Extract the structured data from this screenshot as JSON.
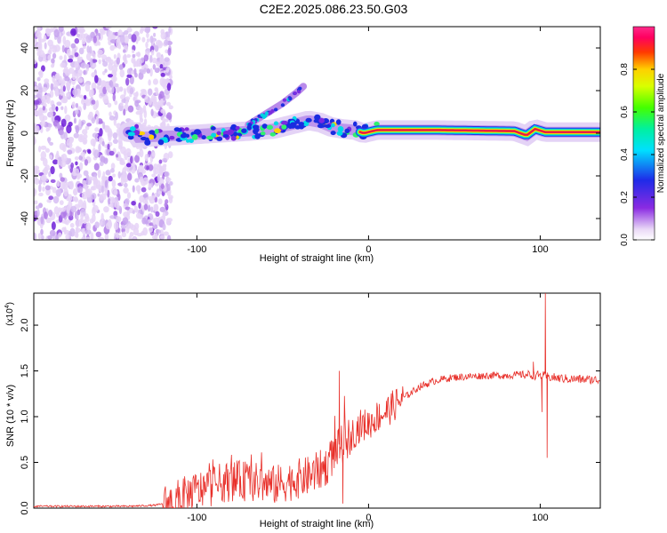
{
  "title": "C2E2.2025.086.23.50.G03",
  "chart_data": [
    {
      "type": "heatmap",
      "xlabel": "Height of straight line (km)",
      "ylabel": "Frequency (Hz)",
      "xlim": [
        -195,
        135
      ],
      "ylim": [
        -50,
        50
      ],
      "xticks": [
        -100,
        0,
        100
      ],
      "yticks": [
        -40,
        -20,
        0,
        20,
        40
      ],
      "colorbar": {
        "label": "Normalized spectral amplitude",
        "range": [
          0,
          1
        ],
        "ticks": [
          "0.0",
          "0.2",
          "0.4",
          "0.6",
          "0.8"
        ]
      },
      "ridge": [
        {
          "x": -135,
          "f": -2
        },
        {
          "x": -110,
          "f": -1
        },
        {
          "x": -90,
          "f": 0
        },
        {
          "x": -70,
          "f": 1
        },
        {
          "x": -55,
          "f": 2
        },
        {
          "x": -45,
          "f": 4
        },
        {
          "x": -35,
          "f": 6
        },
        {
          "x": -28,
          "f": 5
        },
        {
          "x": -22,
          "f": 3
        },
        {
          "x": -15,
          "f": 2
        },
        {
          "x": -8,
          "f": 1.5
        },
        {
          "x": -3,
          "f": 0
        },
        {
          "x": 5,
          "f": 1.5
        },
        {
          "x": 40,
          "f": 1.5
        },
        {
          "x": 85,
          "f": 1
        },
        {
          "x": 92,
          "f": -1
        },
        {
          "x": 97,
          "f": 2
        },
        {
          "x": 103,
          "f": 0.5
        },
        {
          "x": 135,
          "f": 0.5
        }
      ],
      "upper_branch": [
        {
          "x": -70,
          "f": 4
        },
        {
          "x": -60,
          "f": 9
        },
        {
          "x": -50,
          "f": 14
        },
        {
          "x": -42,
          "f": 19
        },
        {
          "x": -38,
          "f": 22
        }
      ]
    },
    {
      "type": "line",
      "xlabel": "Height of straight line (km)",
      "ylabel": "SNR (10 * v/v)",
      "scale_label": "(x10",
      "scale_exp": "4",
      "scale_close": ")",
      "xlim": [
        -195,
        135
      ],
      "ylim": [
        0,
        2.35
      ],
      "xticks": [
        -100,
        0,
        100
      ],
      "yticks": [
        "0.0",
        "0.5",
        "1.0",
        "1.5",
        "2.0"
      ],
      "series": [
        {
          "name": "SNR",
          "color": "#e8302a",
          "points": [
            [
              -195,
              0.02
            ],
            [
              -140,
              0.02
            ],
            [
              -125,
              0.03
            ],
            [
              -115,
              0.06
            ],
            [
              -105,
              0.15
            ],
            [
              -95,
              0.22
            ],
            [
              -85,
              0.28
            ],
            [
              -75,
              0.3
            ],
            [
              -65,
              0.28
            ],
            [
              -55,
              0.25
            ],
            [
              -45,
              0.3
            ],
            [
              -35,
              0.35
            ],
            [
              -25,
              0.45
            ],
            [
              -20,
              0.6
            ],
            [
              -15,
              0.7
            ],
            [
              -10,
              0.8
            ],
            [
              -5,
              0.9
            ],
            [
              0,
              0.92
            ],
            [
              5,
              1.0
            ],
            [
              10,
              1.05
            ],
            [
              20,
              1.2
            ],
            [
              30,
              1.33
            ],
            [
              40,
              1.4
            ],
            [
              50,
              1.43
            ],
            [
              60,
              1.44
            ],
            [
              70,
              1.45
            ],
            [
              80,
              1.45
            ],
            [
              90,
              1.46
            ],
            [
              100,
              1.45
            ],
            [
              110,
              1.42
            ],
            [
              120,
              1.41
            ],
            [
              135,
              1.4
            ]
          ],
          "spikes": [
            {
              "x": -17,
              "y": 1.5
            },
            {
              "x": -15,
              "y": 0.05
            },
            {
              "x": 96,
              "y": 1.6
            },
            {
              "x": 101,
              "y": 1.05
            },
            {
              "x": 103,
              "y": 2.35
            },
            {
              "x": 104,
              "y": 0.55
            }
          ]
        }
      ]
    }
  ]
}
